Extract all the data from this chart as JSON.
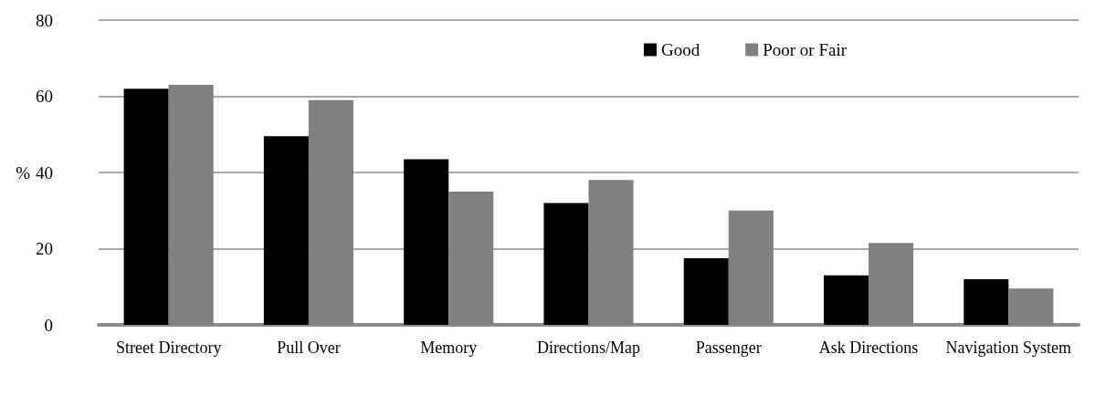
{
  "chart_data": {
    "type": "bar",
    "ylabel": "%",
    "categories": [
      "Street Directory",
      "Pull Over",
      "Memory",
      "Directions/Map",
      "Passenger",
      "Ask Directions",
      "Navigation System"
    ],
    "series": [
      {
        "name": "Good",
        "color": "#000000",
        "values": [
          62,
          49.5,
          43.5,
          32,
          17.5,
          13,
          12
        ]
      },
      {
        "name": "Poor or Fair",
        "color": "#808080",
        "values": [
          63,
          59,
          35,
          38,
          30,
          21.5,
          9.5
        ]
      }
    ],
    "ylim": [
      0,
      80
    ],
    "yticks": [
      0,
      20,
      40,
      60,
      80
    ],
    "grid": "y",
    "legend": "top"
  }
}
